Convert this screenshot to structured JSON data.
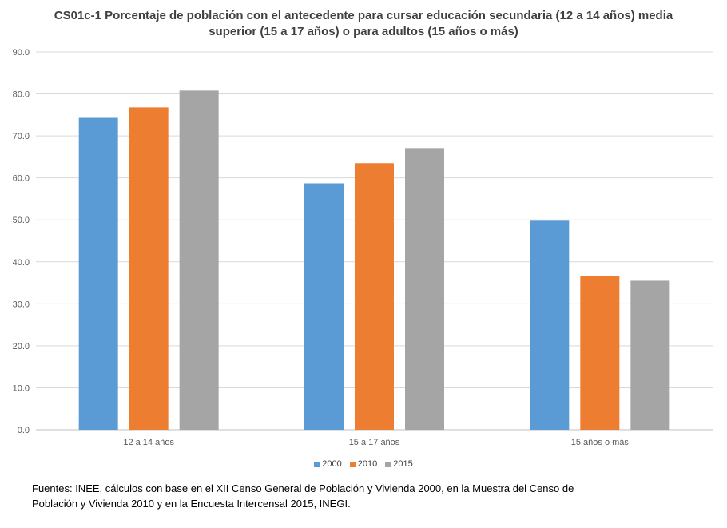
{
  "chart_data": {
    "type": "bar",
    "title": "CS01c-1 Porcentaje de población con el antecedente para cursar educación secundaria (12 a 14 años) media superior (15 a 17 años) o para adultos (15 años o más)",
    "categories": [
      "12 a 14 años",
      "15 a 17 años",
      "15 años o más"
    ],
    "series": [
      {
        "name": "2000",
        "values": [
          74.3,
          58.7,
          49.8
        ],
        "color": "#5b9bd5"
      },
      {
        "name": "2010",
        "values": [
          76.8,
          63.5,
          36.6
        ],
        "color": "#ed7d31"
      },
      {
        "name": "2015",
        "values": [
          80.8,
          67.1,
          35.5
        ],
        "color": "#a5a5a5"
      }
    ],
    "ylim": [
      0,
      90
    ],
    "yticks": [
      "0.0",
      "10.0",
      "20.0",
      "30.0",
      "40.0",
      "50.0",
      "60.0",
      "70.0",
      "80.0",
      "90.0"
    ],
    "grid": true,
    "legend_position": "bottom"
  },
  "footer": {
    "source": "Fuentes: INEE, cálculos con base en el XII Censo General de Población y Vivienda 2000, en la Muestra del Censo de Población y Vivienda 2010 y en la Encuesta Intercensal 2015, INEGI."
  }
}
